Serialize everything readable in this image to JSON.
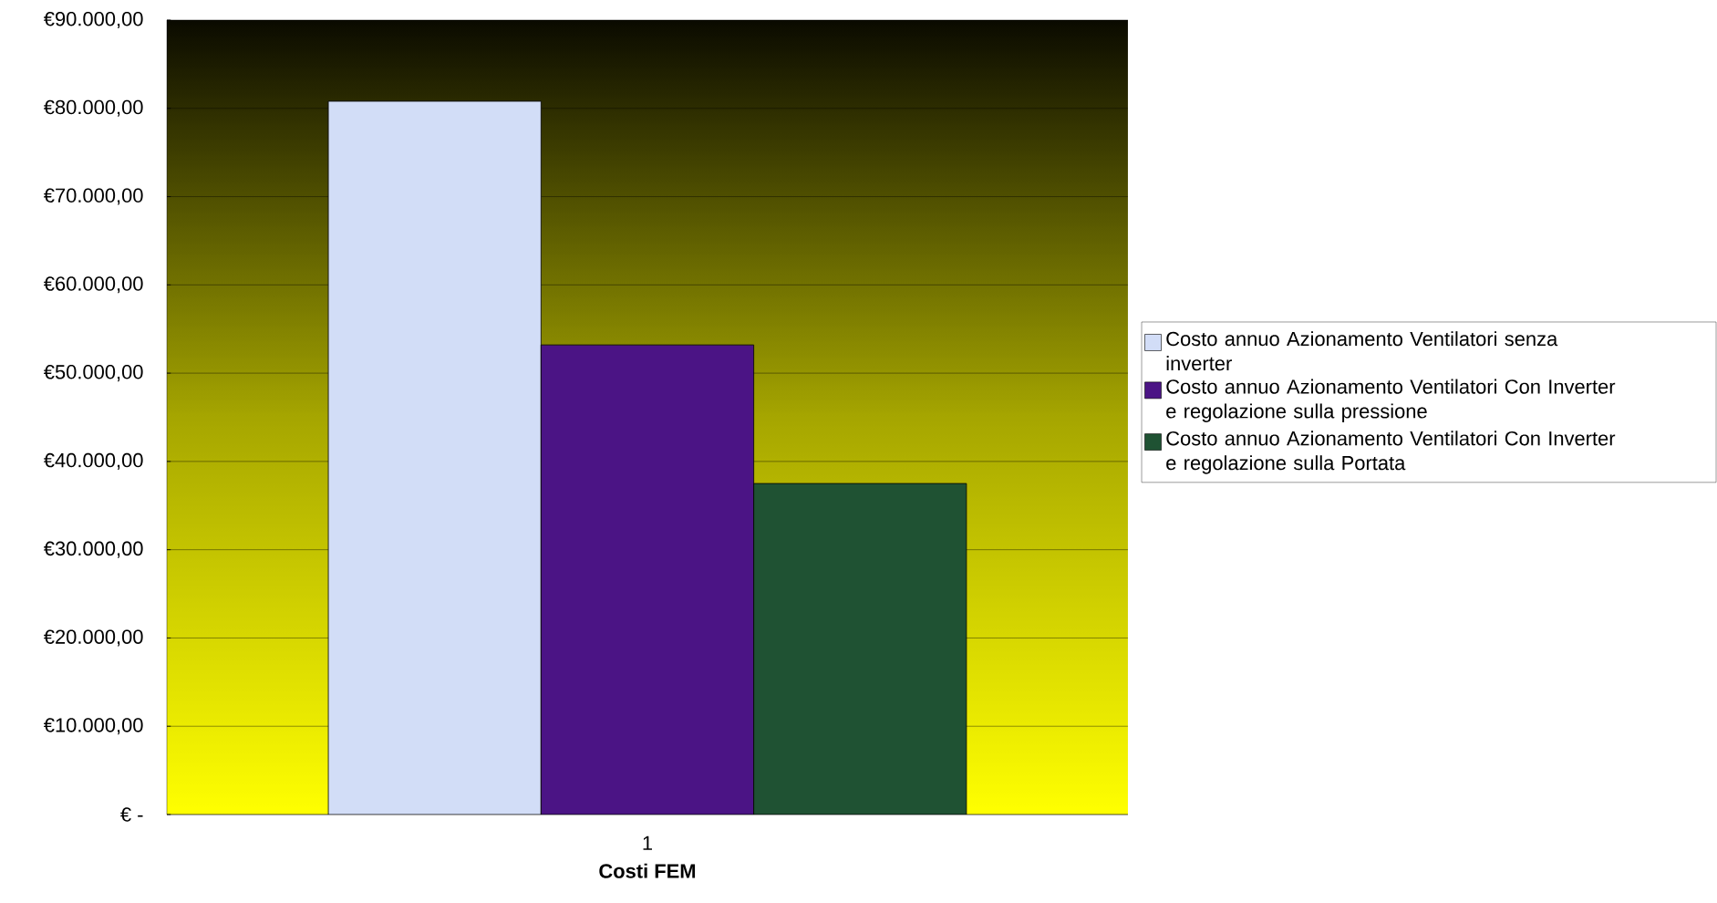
{
  "chart_data": {
    "type": "bar",
    "xlabel": "Costi FEM",
    "categories": [
      "1"
    ],
    "series": [
      {
        "name": "Costo annuo Azionamento Ventilatori senza inverter",
        "color": "#d2ddf7",
        "values": [
          80800
        ]
      },
      {
        "name": "Costo annuo Azionamento Ventilatori Con Inverter e regolazione sulla pressione",
        "color": "#4b1485",
        "values": [
          53200
        ]
      },
      {
        "name": "Costo annuo Azionamento Ventilatori Con Inverter e regolazione sulla Portata",
        "color": "#1f5233",
        "values": [
          37500
        ]
      }
    ],
    "ylim": [
      0,
      90000
    ],
    "yticks": [
      {
        "value": 0,
        "label": "€ -"
      },
      {
        "value": 10000,
        "label": "€10.000,00"
      },
      {
        "value": 20000,
        "label": "€20.000,00"
      },
      {
        "value": 30000,
        "label": "€30.000,00"
      },
      {
        "value": 40000,
        "label": "€40.000,00"
      },
      {
        "value": 50000,
        "label": "€50.000,00"
      },
      {
        "value": 60000,
        "label": "€60.000,00"
      },
      {
        "value": 70000,
        "label": "€70.000,00"
      },
      {
        "value": 80000,
        "label": "€80.000,00"
      },
      {
        "value": 90000,
        "label": "€90.000,00"
      }
    ],
    "grid": "y",
    "legend": "right"
  }
}
